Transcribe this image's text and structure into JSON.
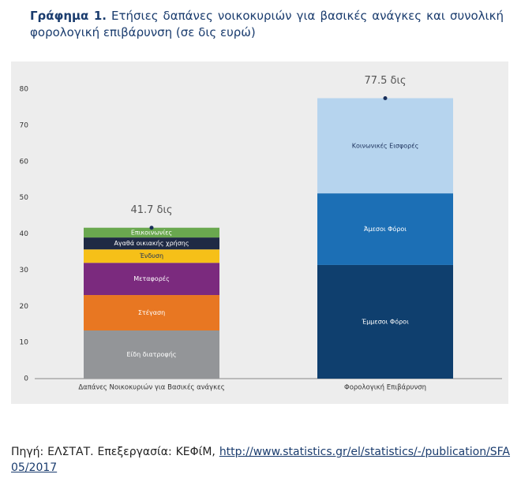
{
  "chart_data": {
    "type": "stacked_bar",
    "figure_label": "Γράφημα 1.",
    "title": "Ετήσιες δαπάνες νοικοκυριών για βασικές ανάγκες και συνολική φορολογική επιβάρυνση (σε δις ευρώ)",
    "categories": [
      "Δαπάνες Νοικοκυριών για Βασικές ανάγκες",
      "Φορολογική Επιβάρυνση"
    ],
    "series": [
      {
        "name": "Είδη διατροφής",
        "color": "#939598",
        "values": [
          13.3,
          null
        ]
      },
      {
        "name": "Στέγαση",
        "color": "#e87722",
        "values": [
          9.8,
          null
        ]
      },
      {
        "name": "Μεταφορές",
        "color": "#7b2a7e",
        "values": [
          8.9,
          null
        ]
      },
      {
        "name": "Ένδυση",
        "color": "#f6c018",
        "values": [
          3.7,
          null
        ]
      },
      {
        "name": "Αγαθά οικιακής χρήσης",
        "color": "#1f2a44",
        "values": [
          3.3,
          null
        ]
      },
      {
        "name": "Επικοινωνίες",
        "color": "#6aa84f",
        "values": [
          2.7,
          null
        ]
      },
      {
        "name": "Έμμεσοι Φόροι",
        "color": "#0f3f6e",
        "values": [
          null,
          31.4
        ]
      },
      {
        "name": "Άμεσοι Φόροι",
        "color": "#1c6fb5",
        "values": [
          null,
          19.8
        ]
      },
      {
        "name": "Κοινωνικές Εισφορές",
        "color": "#b6d4ee",
        "values": [
          null,
          26.3
        ]
      }
    ],
    "totals": {
      "values": [
        41.7,
        77.5
      ],
      "value_labels": [
        "41.7 δις",
        "77.5 δις"
      ],
      "color": "#1a2f5a"
    },
    "ylim": [
      0,
      80
    ],
    "yticks": [
      0,
      10,
      20,
      30,
      40,
      50,
      60,
      70,
      80
    ],
    "grid": false
  },
  "source": {
    "text": "Πηγή: ΕΛΣΤΑΤ. Επεξεργασία: ΚΕΦίΜ,",
    "url": "http://www.statistics.gr/el/statistics/-/publication/SFA05/2017"
  }
}
